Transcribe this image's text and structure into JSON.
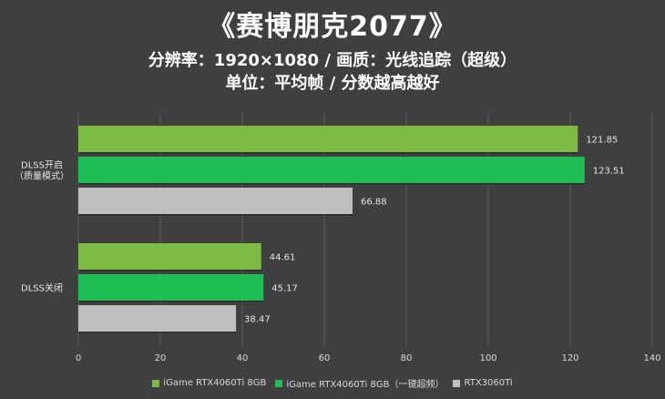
{
  "title": "《赛博朋克2077》",
  "subtitle1": "分辨率：1920×1080 / 画质：光线追踪（超级）",
  "subtitle2": "单位：平均帧 / 分数越高越好",
  "chart_data": {
    "type": "bar",
    "orientation": "horizontal",
    "categories": [
      "DLSS开启（质量模式）",
      "DLSS关闭"
    ],
    "category_lines": [
      [
        "DLSS开启",
        "（质量模式）"
      ],
      [
        "DLSS关闭"
      ]
    ],
    "series": [
      {
        "name": "iGame RTX4060Ti 8GB",
        "values": [
          121.85,
          44.61
        ],
        "color": "#7dbb42"
      },
      {
        "name": "iGame RTX4060Ti 8GB（一键超频）",
        "values": [
          123.51,
          45.17
        ],
        "color": "#1fbe57"
      },
      {
        "name": "RTX3060Ti",
        "values": [
          66.88,
          38.47
        ],
        "color": "#bfbfbf"
      }
    ],
    "xlim": [
      0,
      140
    ],
    "xticks": [
      0,
      20,
      40,
      60,
      80,
      100,
      120,
      140
    ],
    "grid": true,
    "legend_position": "bottom"
  }
}
